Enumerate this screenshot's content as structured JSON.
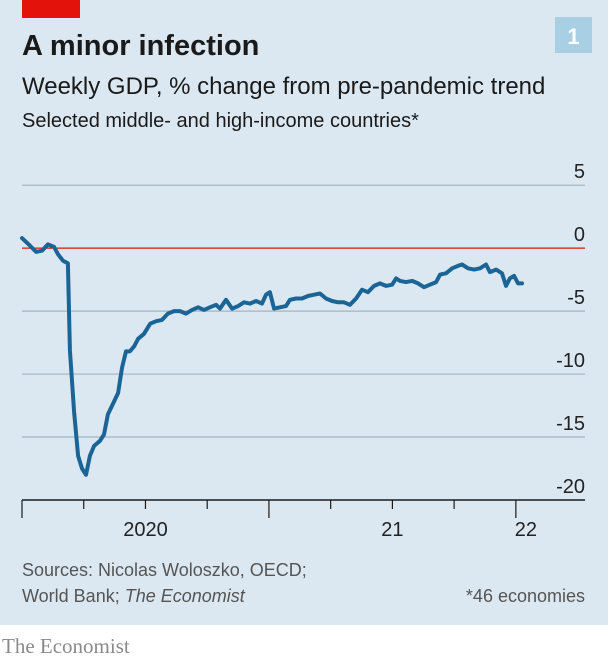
{
  "chart_data": {
    "type": "line",
    "title": "A minor infection",
    "subtitle": "Weekly GDP, % change from pre-pandemic trend",
    "description": "Selected middle- and high-income countries*",
    "chart_number": "1",
    "source_line1": "Sources: Nicolas Woloszko, OECD;",
    "source_line2": "World Bank;",
    "source_italic": "The Economist",
    "note": "*46 economies",
    "brand": "The Economist",
    "xlim": [
      2020,
      2022.28
    ],
    "xticks": [
      {
        "value": 2020,
        "label": "2020"
      },
      {
        "value": 2021,
        "label": "21"
      },
      {
        "value": 2022,
        "label": "22"
      }
    ],
    "xticks_minor": [
      2020.25,
      2020.5,
      2020.75,
      2021.25,
      2021.5,
      2021.75
    ],
    "ylim": [
      -20,
      7
    ],
    "yticks": [
      5,
      0,
      -5,
      -10,
      -15,
      -20
    ],
    "grid": true,
    "zero_line_color": "#e3120b",
    "series": [
      {
        "color": "#1b6496",
        "x": [
          2020.0,
          2020.032,
          2020.057,
          2020.081,
          2020.105,
          2020.13,
          2020.146,
          2020.166,
          2020.186,
          2020.194,
          2020.211,
          2020.227,
          2020.243,
          2020.259,
          2020.275,
          2020.292,
          2020.316,
          2020.332,
          2020.348,
          2020.365,
          2020.389,
          2020.405,
          2020.421,
          2020.437,
          2020.454,
          2020.47,
          2020.494,
          2020.519,
          2020.543,
          2020.567,
          2020.591,
          2020.616,
          2020.64,
          2020.664,
          2020.689,
          2020.713,
          2020.737,
          2020.761,
          2020.786,
          2020.802,
          2020.826,
          2020.851,
          2020.875,
          2020.899,
          2020.923,
          2020.948,
          2020.972,
          2020.988,
          2021.004,
          2021.021,
          2021.045,
          2021.069,
          2021.085,
          2021.11,
          2021.134,
          2021.158,
          2021.183,
          2021.207,
          2021.231,
          2021.256,
          2021.28,
          2021.304,
          2021.328,
          2021.353,
          2021.377,
          2021.401,
          2021.426,
          2021.45,
          2021.474,
          2021.499,
          2021.515,
          2021.531,
          2021.555,
          2021.58,
          2021.604,
          2021.628,
          2021.652,
          2021.677,
          2021.693,
          2021.717,
          2021.742,
          2021.766,
          2021.782,
          2021.806,
          2021.831,
          2021.855,
          2021.879,
          2021.895,
          2021.92,
          2021.944,
          2021.96,
          2021.976,
          2021.993,
          2022.009,
          2022.025
        ],
        "values": [
          0.8,
          0.2,
          -0.3,
          -0.2,
          0.3,
          0.1,
          -0.5,
          -1.0,
          -1.2,
          -8.1,
          -13,
          -16.5,
          -17.5,
          -18,
          -16.5,
          -15.7,
          -15.3,
          -14.8,
          -13.2,
          -12.5,
          -11.5,
          -9.5,
          -8.2,
          -8.2,
          -7.8,
          -7.2,
          -6.8,
          -6.0,
          -5.8,
          -5.7,
          -5.2,
          -5.0,
          -5.0,
          -5.2,
          -4.9,
          -4.7,
          -4.9,
          -4.7,
          -4.5,
          -4.8,
          -4.1,
          -4.8,
          -4.6,
          -4.3,
          -4.4,
          -4.2,
          -4.4,
          -3.7,
          -3.5,
          -4.8,
          -4.7,
          -4.6,
          -4.1,
          -4.0,
          -4.0,
          -3.8,
          -3.7,
          -3.6,
          -4.0,
          -4.2,
          -4.3,
          -4.3,
          -4.5,
          -4.0,
          -3.3,
          -3.5,
          -3.0,
          -2.8,
          -3.0,
          -2.9,
          -2.4,
          -2.6,
          -2.7,
          -2.6,
          -2.8,
          -3.1,
          -2.9,
          -2.7,
          -2.1,
          -2.0,
          -1.6,
          -1.4,
          -1.3,
          -1.6,
          -1.7,
          -1.6,
          -1.3,
          -1.9,
          -1.7,
          -2.0,
          -3.0,
          -2.4,
          -2.2,
          -2.8,
          -2.8
        ]
      }
    ]
  }
}
